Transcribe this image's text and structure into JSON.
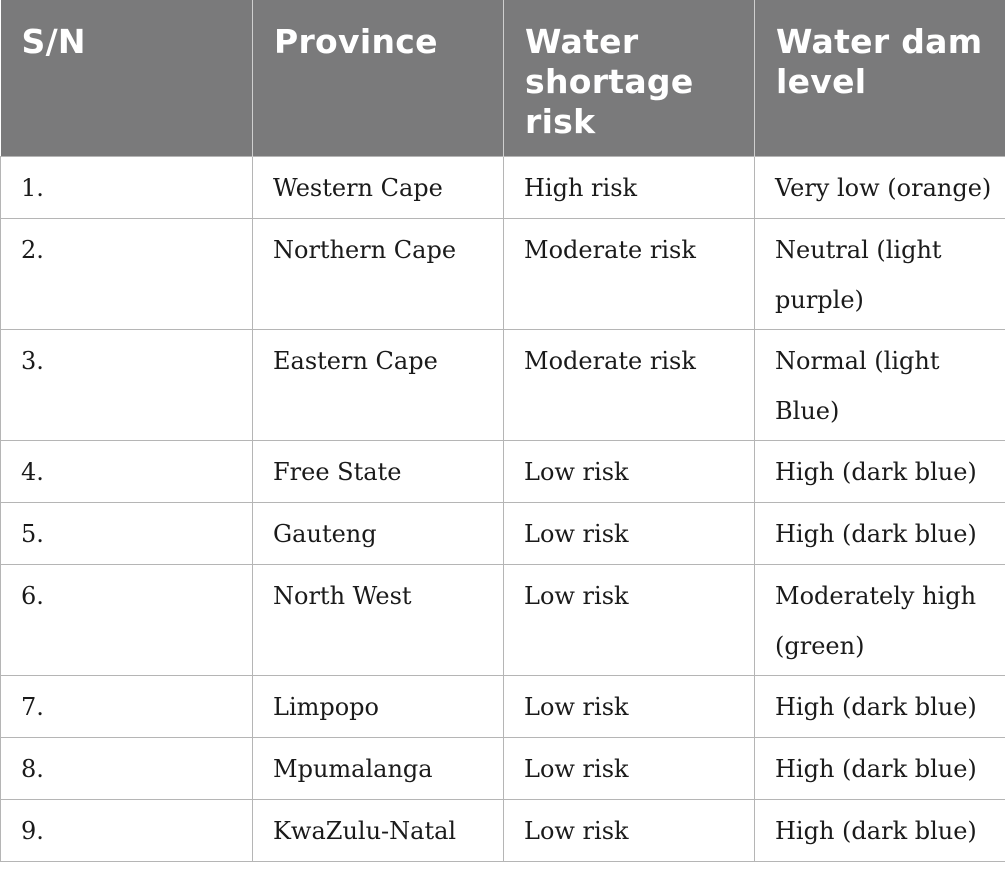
{
  "table": {
    "headers": [
      "S/N",
      "Province",
      "Water shortage risk",
      "Water dam level"
    ],
    "rows": [
      {
        "sn": "1.",
        "province": "Western Cape",
        "risk": "High risk",
        "dam": "Very low (orange)"
      },
      {
        "sn": "2.",
        "province": "Northern Cape",
        "risk": "Moderate risk",
        "dam": "Neutral (light purple)"
      },
      {
        "sn": "3.",
        "province": "Eastern Cape",
        "risk": "Moderate risk",
        "dam": "Normal (light Blue)"
      },
      {
        "sn": "4.",
        "province": "Free State",
        "risk": "Low risk",
        "dam": "High (dark blue)"
      },
      {
        "sn": "5.",
        "province": "Gauteng",
        "risk": "Low risk",
        "dam": "High (dark blue)"
      },
      {
        "sn": "6.",
        "province": "North West",
        "risk": "Low risk",
        "dam": "Moderately high (green)"
      },
      {
        "sn": "7.",
        "province": "Limpopo",
        "risk": "Low risk",
        "dam": "High (dark blue)"
      },
      {
        "sn": "8.",
        "province": "Mpumalanga",
        "risk": "Low risk",
        "dam": "High (dark blue)"
      },
      {
        "sn": "9.",
        "province": "KwaZulu-Natal",
        "risk": "Low risk",
        "dam": "High (dark blue)"
      }
    ]
  },
  "colors": {
    "header_bg": "#7a7a7b",
    "header_text": "#ffffff",
    "border": "#b5b5b5"
  }
}
